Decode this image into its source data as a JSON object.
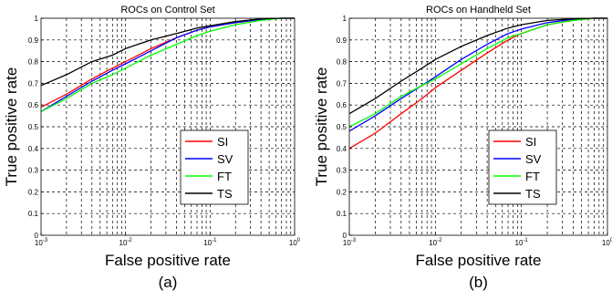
{
  "colors": {
    "SI": "#ff0000",
    "SV": "#0000ff",
    "FT": "#00ff00",
    "TS": "#000000"
  },
  "chart_data": [
    {
      "panel_label": "(a)",
      "type": "line",
      "title": "ROCs on Control Set",
      "xlabel": "False positive rate",
      "ylabel": "True positive rate",
      "xscale": "log",
      "xlim": [
        0.001,
        1
      ],
      "ylim": [
        0,
        1
      ],
      "grid": true,
      "legend_position": "lower-right",
      "x_ticks": [
        {
          "base": "10",
          "exp": "-3"
        },
        {
          "base": "10",
          "exp": "-2"
        },
        {
          "base": "10",
          "exp": "-1"
        },
        {
          "base": "10",
          "exp": "0"
        }
      ],
      "y_ticks": [
        "0",
        "0.1",
        "0.2",
        "0.3",
        "0.4",
        "0.5",
        "0.6",
        "0.7",
        "0.8",
        "0.9",
        "1"
      ],
      "series": [
        {
          "name": "SI",
          "x": [
            0.001,
            0.002,
            0.004,
            0.007,
            0.01,
            0.02,
            0.04,
            0.07,
            0.1,
            0.2,
            0.4,
            0.7,
            1
          ],
          "y": [
            0.59,
            0.65,
            0.72,
            0.77,
            0.8,
            0.86,
            0.91,
            0.945,
            0.96,
            0.98,
            0.995,
            1.0,
            1.0
          ]
        },
        {
          "name": "SV",
          "x": [
            0.001,
            0.002,
            0.004,
            0.007,
            0.01,
            0.02,
            0.04,
            0.07,
            0.1,
            0.2,
            0.4,
            0.7,
            1
          ],
          "y": [
            0.57,
            0.64,
            0.71,
            0.76,
            0.79,
            0.85,
            0.91,
            0.945,
            0.96,
            0.98,
            0.995,
            1.0,
            1.0
          ]
        },
        {
          "name": "FT",
          "x": [
            0.001,
            0.002,
            0.004,
            0.007,
            0.01,
            0.02,
            0.04,
            0.07,
            0.1,
            0.2,
            0.4,
            0.7,
            1
          ],
          "y": [
            0.57,
            0.63,
            0.7,
            0.74,
            0.77,
            0.83,
            0.88,
            0.92,
            0.94,
            0.97,
            0.99,
            1.0,
            1.0
          ]
        },
        {
          "name": "TS",
          "x": [
            0.001,
            0.002,
            0.004,
            0.007,
            0.01,
            0.02,
            0.04,
            0.07,
            0.1,
            0.2,
            0.4,
            0.7,
            1
          ],
          "y": [
            0.69,
            0.74,
            0.8,
            0.83,
            0.86,
            0.9,
            0.93,
            0.955,
            0.965,
            0.985,
            0.997,
            1.0,
            1.0
          ]
        }
      ]
    },
    {
      "panel_label": "(b)",
      "type": "line",
      "title": "ROCs on Handheld Set",
      "xlabel": "False positive rate",
      "ylabel": "True positive rate",
      "xscale": "log",
      "xlim": [
        0.001,
        1
      ],
      "ylim": [
        0,
        1
      ],
      "grid": true,
      "legend_position": "lower-right",
      "x_ticks": [
        {
          "base": "10",
          "exp": "-3"
        },
        {
          "base": "10",
          "exp": "-2"
        },
        {
          "base": "10",
          "exp": "-1"
        },
        {
          "base": "10",
          "exp": "0"
        }
      ],
      "y_ticks": [
        "0",
        "0.1",
        "0.2",
        "0.3",
        "0.4",
        "0.5",
        "0.6",
        "0.7",
        "0.8",
        "0.9",
        "1"
      ],
      "series": [
        {
          "name": "SI",
          "x": [
            0.001,
            0.002,
            0.004,
            0.007,
            0.01,
            0.02,
            0.04,
            0.07,
            0.1,
            0.2,
            0.4,
            0.7,
            1
          ],
          "y": [
            0.4,
            0.47,
            0.56,
            0.63,
            0.68,
            0.76,
            0.84,
            0.9,
            0.93,
            0.97,
            0.99,
            1.0,
            1.0
          ]
        },
        {
          "name": "SV",
          "x": [
            0.001,
            0.002,
            0.004,
            0.007,
            0.01,
            0.02,
            0.04,
            0.07,
            0.1,
            0.2,
            0.4,
            0.7,
            1
          ],
          "y": [
            0.48,
            0.55,
            0.63,
            0.69,
            0.73,
            0.81,
            0.88,
            0.93,
            0.95,
            0.98,
            0.995,
            1.0,
            1.0
          ]
        },
        {
          "name": "FT",
          "x": [
            0.001,
            0.002,
            0.004,
            0.007,
            0.01,
            0.02,
            0.04,
            0.07,
            0.1,
            0.2,
            0.4,
            0.7,
            1
          ],
          "y": [
            0.5,
            0.56,
            0.64,
            0.69,
            0.72,
            0.79,
            0.86,
            0.91,
            0.93,
            0.97,
            0.99,
            1.0,
            1.0
          ]
        },
        {
          "name": "TS",
          "x": [
            0.001,
            0.002,
            0.004,
            0.007,
            0.01,
            0.02,
            0.04,
            0.07,
            0.1,
            0.2,
            0.4,
            0.7,
            1
          ],
          "y": [
            0.56,
            0.63,
            0.71,
            0.77,
            0.81,
            0.87,
            0.92,
            0.955,
            0.97,
            0.99,
            0.997,
            1.0,
            1.0
          ]
        }
      ]
    }
  ]
}
